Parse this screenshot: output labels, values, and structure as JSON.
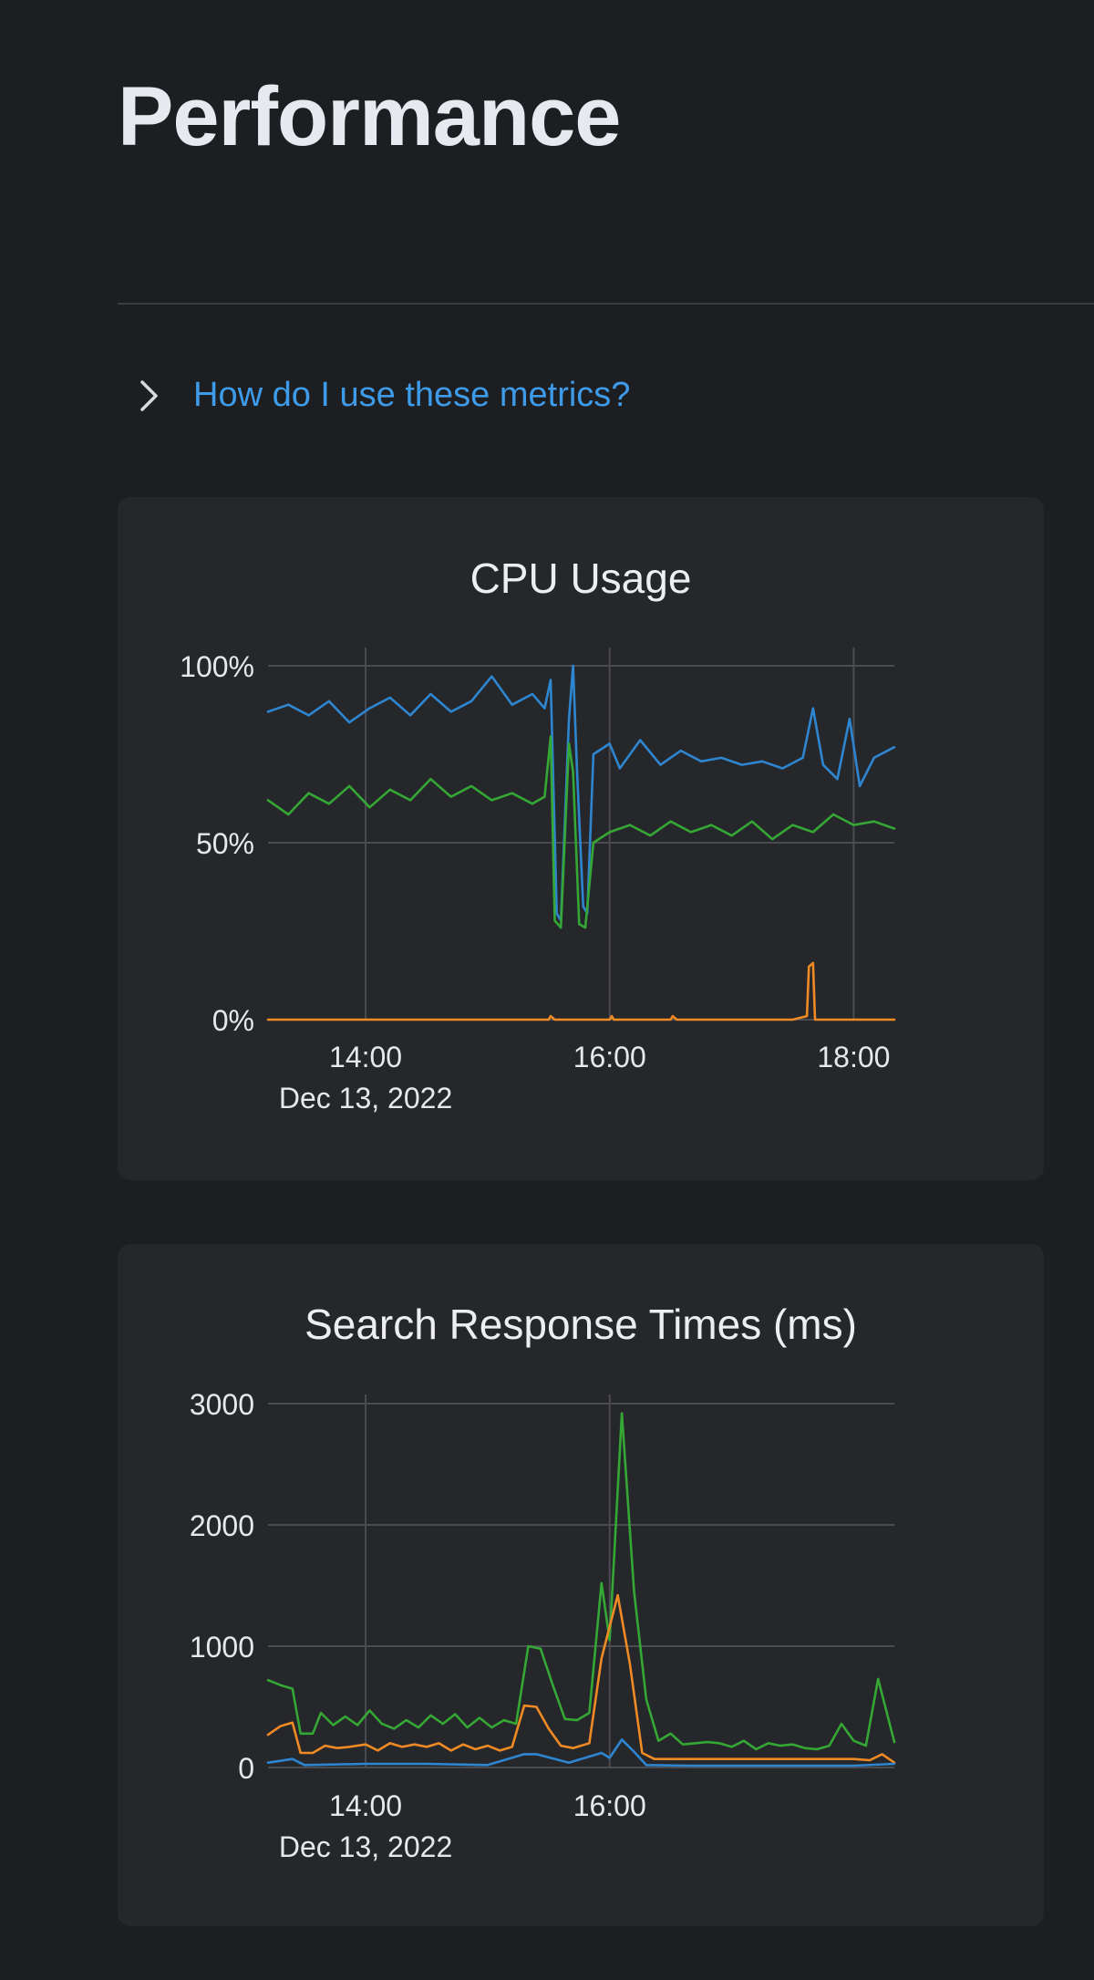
{
  "page": {
    "title": "Performance",
    "help_link": "How do I use these metrics?"
  },
  "colors": {
    "background": "#1d1e21",
    "card": "#26272b",
    "grid": "#4a4c52",
    "link": "#3d9be9",
    "blue": "#2e86d1",
    "green": "#34a734",
    "orange": "#f08a24"
  },
  "chart_data": [
    {
      "type": "line",
      "title": "CPU Usage",
      "x_ticks": [
        "14:00",
        "16:00",
        "18:00"
      ],
      "x_date_label": "Dec 13, 2022",
      "x_range": [
        "13:12",
        "18:20"
      ],
      "y_ticks": [
        "100%",
        "50%",
        "0%"
      ],
      "ylim": [
        0,
        100
      ],
      "grid": true,
      "series": [
        {
          "color": "blue",
          "points": [
            [
              "13:12",
              87
            ],
            [
              "13:22",
              89
            ],
            [
              "13:32",
              86
            ],
            [
              "13:42",
              90
            ],
            [
              "13:52",
              84
            ],
            [
              "14:02",
              88
            ],
            [
              "14:12",
              91
            ],
            [
              "14:22",
              86
            ],
            [
              "14:32",
              92
            ],
            [
              "14:42",
              87
            ],
            [
              "14:52",
              90
            ],
            [
              "15:02",
              97
            ],
            [
              "15:12",
              89
            ],
            [
              "15:22",
              92
            ],
            [
              "15:28",
              88
            ],
            [
              "15:31",
              96
            ],
            [
              "15:34",
              30
            ],
            [
              "15:36",
              28
            ],
            [
              "15:40",
              85
            ],
            [
              "15:42",
              100
            ],
            [
              "15:44",
              70
            ],
            [
              "15:47",
              32
            ],
            [
              "15:49",
              30
            ],
            [
              "15:52",
              75
            ],
            [
              "16:00",
              78
            ],
            [
              "16:05",
              71
            ],
            [
              "16:15",
              79
            ],
            [
              "16:25",
              72
            ],
            [
              "16:35",
              76
            ],
            [
              "16:45",
              73
            ],
            [
              "16:55",
              74
            ],
            [
              "17:05",
              72
            ],
            [
              "17:15",
              73
            ],
            [
              "17:25",
              71
            ],
            [
              "17:35",
              74
            ],
            [
              "17:40",
              88
            ],
            [
              "17:45",
              72
            ],
            [
              "17:52",
              68
            ],
            [
              "17:58",
              85
            ],
            [
              "18:03",
              66
            ],
            [
              "18:10",
              74
            ],
            [
              "18:20",
              77
            ]
          ]
        },
        {
          "color": "green",
          "points": [
            [
              "13:12",
              62
            ],
            [
              "13:22",
              58
            ],
            [
              "13:32",
              64
            ],
            [
              "13:42",
              61
            ],
            [
              "13:52",
              66
            ],
            [
              "14:02",
              60
            ],
            [
              "14:12",
              65
            ],
            [
              "14:22",
              62
            ],
            [
              "14:32",
              68
            ],
            [
              "14:42",
              63
            ],
            [
              "14:52",
              66
            ],
            [
              "15:02",
              62
            ],
            [
              "15:12",
              64
            ],
            [
              "15:22",
              61
            ],
            [
              "15:28",
              63
            ],
            [
              "15:31",
              80
            ],
            [
              "15:33",
              28
            ],
            [
              "15:36",
              26
            ],
            [
              "15:40",
              78
            ],
            [
              "15:42",
              70
            ],
            [
              "15:45",
              27
            ],
            [
              "15:48",
              26
            ],
            [
              "15:52",
              50
            ],
            [
              "16:00",
              53
            ],
            [
              "16:10",
              55
            ],
            [
              "16:20",
              52
            ],
            [
              "16:30",
              56
            ],
            [
              "16:40",
              53
            ],
            [
              "16:50",
              55
            ],
            [
              "17:00",
              52
            ],
            [
              "17:10",
              56
            ],
            [
              "17:20",
              51
            ],
            [
              "17:30",
              55
            ],
            [
              "17:40",
              53
            ],
            [
              "17:50",
              58
            ],
            [
              "18:00",
              55
            ],
            [
              "18:10",
              56
            ],
            [
              "18:20",
              54
            ]
          ]
        },
        {
          "color": "orange",
          "points": [
            [
              "13:12",
              0
            ],
            [
              "15:30",
              0
            ],
            [
              "15:31",
              1
            ],
            [
              "15:33",
              0
            ],
            [
              "16:00",
              0
            ],
            [
              "16:01",
              1
            ],
            [
              "16:02",
              0
            ],
            [
              "16:30",
              0
            ],
            [
              "16:31",
              1
            ],
            [
              "16:33",
              0
            ],
            [
              "17:30",
              0
            ],
            [
              "17:37",
              1
            ],
            [
              "17:38",
              15
            ],
            [
              "17:40",
              16
            ],
            [
              "17:41",
              0
            ],
            [
              "18:20",
              0
            ]
          ]
        }
      ]
    },
    {
      "type": "line",
      "title": "Search Response Times (ms)",
      "x_ticks": [
        "14:00",
        "16:00"
      ],
      "x_date_label": "Dec 13, 2022",
      "x_range": [
        "13:12",
        "18:20"
      ],
      "y_ticks": [
        "3000",
        "2000",
        "1000",
        "0"
      ],
      "ylim": [
        0,
        3000
      ],
      "grid": true,
      "series": [
        {
          "color": "green",
          "points": [
            [
              "13:12",
              720
            ],
            [
              "13:18",
              680
            ],
            [
              "13:24",
              650
            ],
            [
              "13:28",
              280
            ],
            [
              "13:34",
              280
            ],
            [
              "13:38",
              450
            ],
            [
              "13:44",
              350
            ],
            [
              "13:50",
              420
            ],
            [
              "13:56",
              350
            ],
            [
              "14:02",
              470
            ],
            [
              "14:08",
              360
            ],
            [
              "14:14",
              320
            ],
            [
              "14:20",
              390
            ],
            [
              "14:26",
              330
            ],
            [
              "14:32",
              430
            ],
            [
              "14:38",
              360
            ],
            [
              "14:44",
              440
            ],
            [
              "14:50",
              330
            ],
            [
              "14:56",
              410
            ],
            [
              "15:02",
              330
            ],
            [
              "15:08",
              390
            ],
            [
              "15:14",
              360
            ],
            [
              "15:20",
              1000
            ],
            [
              "15:26",
              980
            ],
            [
              "15:32",
              680
            ],
            [
              "15:38",
              400
            ],
            [
              "15:44",
              390
            ],
            [
              "15:50",
              450
            ],
            [
              "15:56",
              1520
            ],
            [
              "16:00",
              1050
            ],
            [
              "16:06",
              2920
            ],
            [
              "16:12",
              1450
            ],
            [
              "16:18",
              560
            ],
            [
              "16:24",
              220
            ],
            [
              "16:30",
              280
            ],
            [
              "16:36",
              190
            ],
            [
              "16:42",
              200
            ],
            [
              "16:48",
              210
            ],
            [
              "16:54",
              200
            ],
            [
              "17:00",
              170
            ],
            [
              "17:06",
              220
            ],
            [
              "17:12",
              150
            ],
            [
              "17:18",
              200
            ],
            [
              "17:24",
              180
            ],
            [
              "17:30",
              190
            ],
            [
              "17:36",
              160
            ],
            [
              "17:42",
              150
            ],
            [
              "17:48",
              180
            ],
            [
              "17:54",
              360
            ],
            [
              "18:00",
              220
            ],
            [
              "18:06",
              180
            ],
            [
              "18:12",
              730
            ],
            [
              "18:20",
              210
            ]
          ]
        },
        {
          "color": "orange",
          "points": [
            [
              "13:12",
              270
            ],
            [
              "13:18",
              340
            ],
            [
              "13:24",
              370
            ],
            [
              "13:28",
              120
            ],
            [
              "13:34",
              120
            ],
            [
              "13:40",
              180
            ],
            [
              "13:46",
              160
            ],
            [
              "13:52",
              170
            ],
            [
              "14:00",
              190
            ],
            [
              "14:06",
              140
            ],
            [
              "14:12",
              200
            ],
            [
              "14:18",
              170
            ],
            [
              "14:24",
              190
            ],
            [
              "14:30",
              170
            ],
            [
              "14:36",
              200
            ],
            [
              "14:42",
              140
            ],
            [
              "14:48",
              190
            ],
            [
              "14:54",
              150
            ],
            [
              "15:00",
              180
            ],
            [
              "15:06",
              140
            ],
            [
              "15:12",
              170
            ],
            [
              "15:18",
              510
            ],
            [
              "15:24",
              500
            ],
            [
              "15:30",
              320
            ],
            [
              "15:36",
              180
            ],
            [
              "15:42",
              160
            ],
            [
              "15:50",
              200
            ],
            [
              "15:56",
              900
            ],
            [
              "16:04",
              1420
            ],
            [
              "16:10",
              850
            ],
            [
              "16:16",
              120
            ],
            [
              "16:22",
              70
            ],
            [
              "16:40",
              70
            ],
            [
              "17:00",
              70
            ],
            [
              "17:20",
              70
            ],
            [
              "17:40",
              70
            ],
            [
              "18:00",
              70
            ],
            [
              "18:08",
              60
            ],
            [
              "18:14",
              110
            ],
            [
              "18:20",
              40
            ]
          ]
        },
        {
          "color": "blue",
          "points": [
            [
              "13:12",
              40
            ],
            [
              "13:24",
              70
            ],
            [
              "13:30",
              20
            ],
            [
              "14:00",
              30
            ],
            [
              "14:30",
              30
            ],
            [
              "15:00",
              20
            ],
            [
              "15:18",
              110
            ],
            [
              "15:24",
              110
            ],
            [
              "15:40",
              40
            ],
            [
              "15:56",
              120
            ],
            [
              "16:00",
              80
            ],
            [
              "16:06",
              230
            ],
            [
              "16:12",
              130
            ],
            [
              "16:18",
              20
            ],
            [
              "16:40",
              15
            ],
            [
              "17:00",
              15
            ],
            [
              "17:30",
              15
            ],
            [
              "18:00",
              15
            ],
            [
              "18:20",
              30
            ]
          ]
        }
      ]
    }
  ]
}
